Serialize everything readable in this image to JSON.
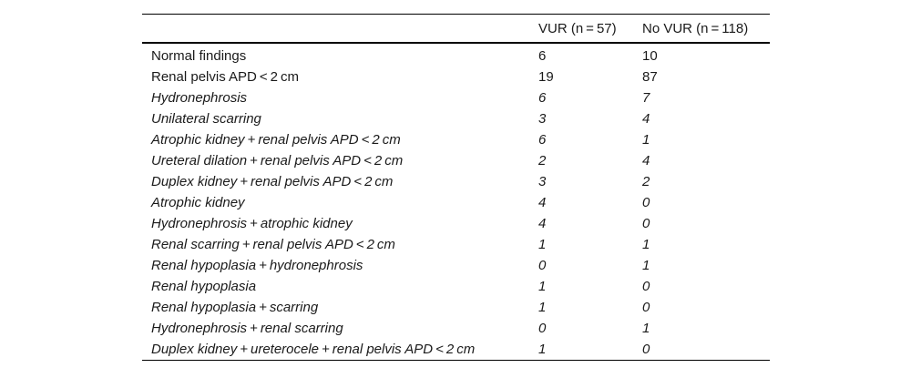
{
  "table": {
    "headers": [
      "",
      "VUR (n = 57)",
      "No VUR (n = 118)"
    ],
    "rows": [
      {
        "label": "Normal findings",
        "vur": "6",
        "no_vur": "10",
        "italic": false
      },
      {
        "label": "Renal pelvis APD < 2 cm",
        "vur": "19",
        "no_vur": "87",
        "italic": false
      },
      {
        "label": "Hydronephrosis",
        "vur": "6",
        "no_vur": "7",
        "italic": true
      },
      {
        "label": "Unilateral scarring",
        "vur": "3",
        "no_vur": "4",
        "italic": true
      },
      {
        "label": "Atrophic kidney + renal pelvis APD < 2 cm",
        "vur": "6",
        "no_vur": "1",
        "italic": true
      },
      {
        "label": "Ureteral dilation + renal pelvis APD < 2 cm",
        "vur": "2",
        "no_vur": "4",
        "italic": true
      },
      {
        "label": "Duplex kidney + renal pelvis APD < 2 cm",
        "vur": "3",
        "no_vur": "2",
        "italic": true
      },
      {
        "label": "Atrophic kidney",
        "vur": "4",
        "no_vur": "0",
        "italic": true
      },
      {
        "label": "Hydronephrosis + atrophic kidney",
        "vur": "4",
        "no_vur": "0",
        "italic": true
      },
      {
        "label": "Renal scarring + renal pelvis APD < 2 cm",
        "vur": "1",
        "no_vur": "1",
        "italic": true
      },
      {
        "label": "Renal hypoplasia + hydronephrosis",
        "vur": "0",
        "no_vur": "1",
        "italic": true
      },
      {
        "label": "Renal hypoplasia",
        "vur": "1",
        "no_vur": "0",
        "italic": true
      },
      {
        "label": "Renal hypoplasia + scarring",
        "vur": "1",
        "no_vur": "0",
        "italic": true
      },
      {
        "label": "Hydronephrosis + renal scarring",
        "vur": "0",
        "no_vur": "1",
        "italic": true
      },
      {
        "label": "Duplex kidney + ureterocele + renal pelvis APD < 2 cm",
        "vur": "1",
        "no_vur": "0",
        "italic": true
      }
    ]
  }
}
